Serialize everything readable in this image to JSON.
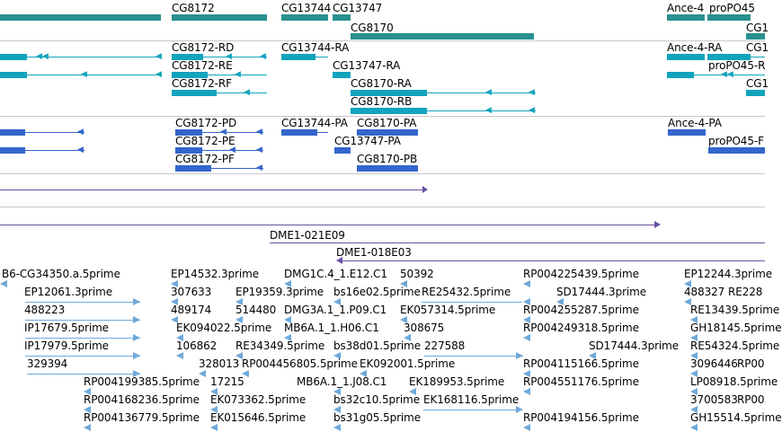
{
  "gene_track": {
    "labels": [
      "CG8172",
      "CG13744",
      "CG13747",
      "CG8170",
      "Ance-4",
      "proPO45",
      "CG1"
    ]
  },
  "mrna_track": {
    "labels": [
      "CG8172-RD",
      "CG8172-RE",
      "CG8172-RF",
      "CG13744-RA",
      "CG13747-RA",
      "CG8170-RA",
      "CG8170-RB",
      "Ance-4-RA",
      "proPO45-R",
      "CG1",
      "CG1"
    ]
  },
  "protein_track": {
    "labels": [
      "CG8172-PD",
      "CG8172-PE",
      "CG8172-PF",
      "CG13744-PA",
      "CG8170-PA",
      "CG13747-PA",
      "CG8170-PB",
      "Ance-4-PA",
      "proPO45-F"
    ]
  },
  "clone_track": {
    "labels": [
      "DME1-021E09",
      "DME1-018E03"
    ]
  },
  "est_track": {
    "labels": [
      "B6-CG34350.a.5prime",
      "EP14532.3prime",
      "DMG1C.4_1.E12.C1",
      "50392",
      "RP004225439.5prime",
      "EP12244.3prime",
      "EP12061.3prime",
      "307633",
      "EP19359.3prime",
      "bs16e02.5prime",
      "RE25432.5prime",
      "SD17444.3prime",
      "488327",
      "RE228",
      "488223",
      "489174",
      "514480",
      "DMG3A.1_1.P09.C1",
      "EK057314.5prime",
      "RP004255287.5prime",
      "RE13439.5prime",
      "IP17679.5prime",
      "EK094022.5prime",
      "MB6A.1_1.H06.C1",
      "308675",
      "RP004249318.5prime",
      "GH18145.5prime",
      "IP17979.5prime",
      "106862",
      "RE34349.5prime",
      "bs38d01.5prime",
      "227588",
      "SD17444.3prime",
      "RE54324.5prime",
      "329394",
      "328013",
      "RP004456805.5prime",
      "EK092001.5prime",
      "RP004115166.5prime",
      "3096446",
      "RP00",
      "RP004199385.5prime",
      "17215",
      "MB6A.1_1.J08.C1",
      "EK189953.5prime",
      "RP004551176.5prime",
      "LP08918.5prime",
      "RP004168236.5prime",
      "EK073362.5prime",
      "bs32c10.5prime",
      "EK168116.5prime",
      "3700583",
      "RP00",
      "RP004136779.5prime",
      "EK015646.5prime",
      "bs31g05.5prime",
      "RP004194156.5prime",
      "GH15514.5prime"
    ]
  },
  "colors": {
    "gene": "#2a8f8f",
    "mrna": "#12a4bd",
    "protein": "#3366cc",
    "clone": "#6a4fa3",
    "est": "#6fa9d9"
  }
}
